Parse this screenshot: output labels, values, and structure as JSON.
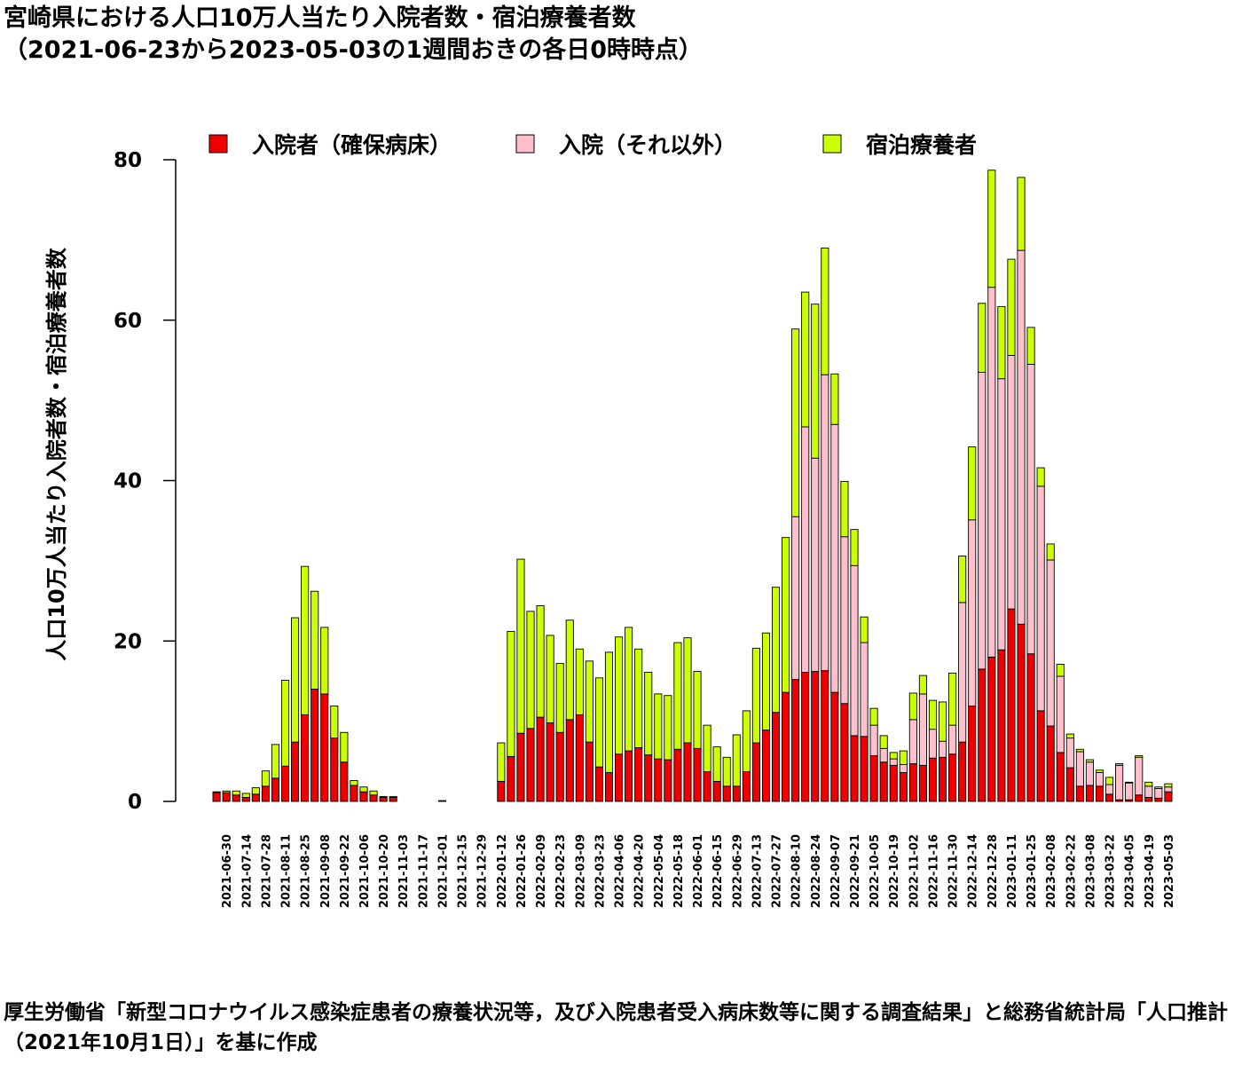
{
  "title": "宮崎県における人口10万人当たり入院者数・宿泊療養者数",
  "subtitle": "（2021-06-23から2023-05-03の1週間おきの各日0時時点）",
  "source_note": "厚生労働省「新型コロナウイルス感染症患者の療養状況等，及び入院患者受入病床数等に関する調査結果」と総務省統計局「人口推計（2021年10月1日）」を基に作成",
  "chart_data": {
    "type": "bar",
    "stacked": true,
    "title": "宮崎県における人口10万人当たり入院者数・宿泊療養者数",
    "subtitle": "（2021-06-23から2023-05-03の1週間おきの各日0時時点）",
    "ylabel": "人口10万人当たり入院者数・宿泊療養者数",
    "xlabel": "",
    "ylim": [
      0,
      80
    ],
    "yticks": [
      0,
      20,
      40,
      60,
      80
    ],
    "legend_position": "top",
    "x": [
      "2021-06-23",
      "2021-06-30",
      "2021-07-07",
      "2021-07-14",
      "2021-07-21",
      "2021-07-28",
      "2021-08-04",
      "2021-08-11",
      "2021-08-18",
      "2021-08-25",
      "2021-09-01",
      "2021-09-08",
      "2021-09-15",
      "2021-09-22",
      "2021-09-29",
      "2021-10-06",
      "2021-10-13",
      "2021-10-20",
      "2021-10-27",
      "2021-11-03",
      "2021-11-10",
      "2021-11-17",
      "2021-11-24",
      "2021-12-01",
      "2021-12-08",
      "2021-12-15",
      "2021-12-22",
      "2021-12-29",
      "2022-01-05",
      "2022-01-12",
      "2022-01-19",
      "2022-01-26",
      "2022-02-02",
      "2022-02-09",
      "2022-02-16",
      "2022-02-23",
      "2022-03-02",
      "2022-03-09",
      "2022-03-16",
      "2022-03-23",
      "2022-03-30",
      "2022-04-06",
      "2022-04-13",
      "2022-04-20",
      "2022-04-27",
      "2022-05-04",
      "2022-05-11",
      "2022-05-18",
      "2022-05-25",
      "2022-06-01",
      "2022-06-08",
      "2022-06-15",
      "2022-06-22",
      "2022-06-29",
      "2022-07-06",
      "2022-07-13",
      "2022-07-20",
      "2022-07-27",
      "2022-08-03",
      "2022-08-10",
      "2022-08-17",
      "2022-08-24",
      "2022-08-31",
      "2022-09-07",
      "2022-09-14",
      "2022-09-21",
      "2022-09-28",
      "2022-10-05",
      "2022-10-12",
      "2022-10-19",
      "2022-10-26",
      "2022-11-02",
      "2022-11-09",
      "2022-11-16",
      "2022-11-23",
      "2022-11-30",
      "2022-12-07",
      "2022-12-14",
      "2022-12-21",
      "2022-12-28",
      "2023-01-04",
      "2023-01-11",
      "2023-01-18",
      "2023-01-25",
      "2023-02-01",
      "2023-02-08",
      "2023-02-15",
      "2023-02-22",
      "2023-03-01",
      "2023-03-08",
      "2023-03-15",
      "2023-03-22",
      "2023-03-29",
      "2023-04-05",
      "2023-04-12",
      "2023-04-19",
      "2023-04-26",
      "2023-05-03"
    ],
    "x_tick_labels": [
      "2021-06-30",
      "2021-07-14",
      "2021-07-28",
      "2021-08-11",
      "2021-08-25",
      "2021-09-08",
      "2021-09-22",
      "2021-10-06",
      "2021-10-20",
      "2021-11-03",
      "2021-11-17",
      "2021-12-01",
      "2021-12-15",
      "2021-12-29",
      "2022-01-12",
      "2022-01-26",
      "2022-02-09",
      "2022-02-23",
      "2022-03-09",
      "2022-03-23",
      "2022-04-06",
      "2022-04-20",
      "2022-05-04",
      "2022-05-18",
      "2022-06-01",
      "2022-06-15",
      "2022-06-29",
      "2022-07-13",
      "2022-07-27",
      "2022-08-10",
      "2022-08-24",
      "2022-09-07",
      "2022-09-21",
      "2022-10-05",
      "2022-10-19",
      "2022-11-02",
      "2022-11-16",
      "2022-11-30",
      "2022-12-14",
      "2022-12-28",
      "2023-01-11",
      "2023-01-25",
      "2023-02-08",
      "2023-02-22",
      "2023-03-08",
      "2023-03-22",
      "2023-04-05",
      "2023-04-19",
      "2023-05-03"
    ],
    "series": [
      {
        "name": "入院者（確保病床）",
        "color": "#ee0000",
        "values": [
          1.1,
          1.1,
          0.8,
          0.5,
          0.9,
          1.9,
          2.9,
          4.4,
          7.4,
          10.8,
          14.0,
          13.4,
          7.9,
          4.9,
          2.0,
          1.2,
          0.8,
          0.5,
          0.5,
          0,
          0,
          0,
          0,
          0.1,
          0,
          0,
          0,
          0,
          0,
          2.5,
          5.6,
          8.5,
          9.1,
          10.5,
          9.8,
          8.6,
          10.2,
          10.8,
          7.4,
          4.3,
          3.6,
          5.9,
          6.3,
          6.7,
          5.8,
          5.3,
          5.2,
          6.5,
          7.3,
          6.6,
          3.7,
          2.5,
          1.9,
          1.9,
          3.7,
          7.3,
          8.9,
          11.1,
          13.6,
          15.2,
          16.1,
          16.2,
          16.3,
          13.6,
          12.2,
          8.2,
          8.1,
          5.7,
          4.9,
          4.5,
          3.6,
          4.7,
          4.5,
          5.4,
          5.5,
          5.9,
          7.4,
          11.9,
          16.5,
          18.0,
          18.9,
          24.0,
          22.1,
          18.4,
          11.3,
          9.4,
          6.1,
          4.2,
          1.9,
          2.0,
          1.9,
          0.9,
          0.2,
          0.2,
          0.8,
          0.5,
          0.4,
          1.2
        ]
      },
      {
        "name": "入院（それ以外）",
        "color": "#ffc0cb",
        "values": [
          0,
          0,
          0,
          0,
          0,
          0,
          0,
          0,
          0,
          0,
          0,
          0,
          0,
          0,
          0,
          0,
          0,
          0,
          0,
          0,
          0,
          0,
          0,
          0,
          0,
          0,
          0,
          0,
          0,
          0,
          0,
          0,
          0,
          0,
          0,
          0,
          0,
          0,
          0,
          0,
          0,
          0,
          0,
          0,
          0,
          0,
          0,
          0,
          0,
          0,
          0,
          0,
          0,
          0,
          0,
          0,
          0,
          0,
          0,
          20.3,
          30.6,
          26.6,
          36.9,
          33.4,
          20.8,
          21.2,
          11.7,
          3.8,
          1.7,
          0.8,
          1.0,
          5.5,
          8.9,
          3.6,
          2.0,
          3.6,
          17.4,
          23.2,
          37.0,
          46.1,
          33.8,
          31.6,
          46.6,
          36.1,
          28.0,
          20.7,
          9.5,
          3.7,
          4.3,
          2.9,
          1.7,
          1.2,
          4.3,
          2.1,
          4.7,
          1.4,
          1.2,
          0.6
        ]
      },
      {
        "name": "宿泊療養者",
        "color": "#ccff00",
        "values": [
          0.1,
          0.2,
          0.5,
          0.5,
          0.8,
          1.9,
          4.2,
          10.7,
          15.5,
          18.5,
          12.2,
          8.3,
          4.0,
          3.7,
          0.6,
          0.6,
          0.5,
          0.1,
          0.1,
          0,
          0,
          0,
          0,
          0,
          0,
          0,
          0,
          0,
          0,
          4.8,
          15.6,
          21.7,
          14.6,
          13.9,
          10.9,
          8.6,
          12.4,
          8.2,
          10.1,
          11.1,
          15.0,
          14.6,
          15.4,
          12.3,
          10.3,
          8.1,
          8.0,
          13.3,
          13.1,
          9.6,
          5.8,
          4.3,
          3.6,
          6.4,
          7.6,
          11.8,
          12.1,
          15.6,
          19.3,
          23.4,
          16.8,
          19.2,
          15.8,
          6.3,
          6.9,
          4.5,
          3.2,
          2.1,
          1.6,
          0.8,
          1.7,
          3.3,
          2.3,
          3.6,
          4.9,
          6.5,
          5.8,
          9.1,
          8.6,
          14.6,
          9.0,
          12.0,
          9.1,
          4.6,
          2.3,
          2.0,
          1.5,
          0.5,
          0.3,
          0.3,
          0.3,
          0.9,
          0.2,
          0.1,
          0.2,
          0.5,
          0.2,
          0.4
        ]
      }
    ]
  }
}
